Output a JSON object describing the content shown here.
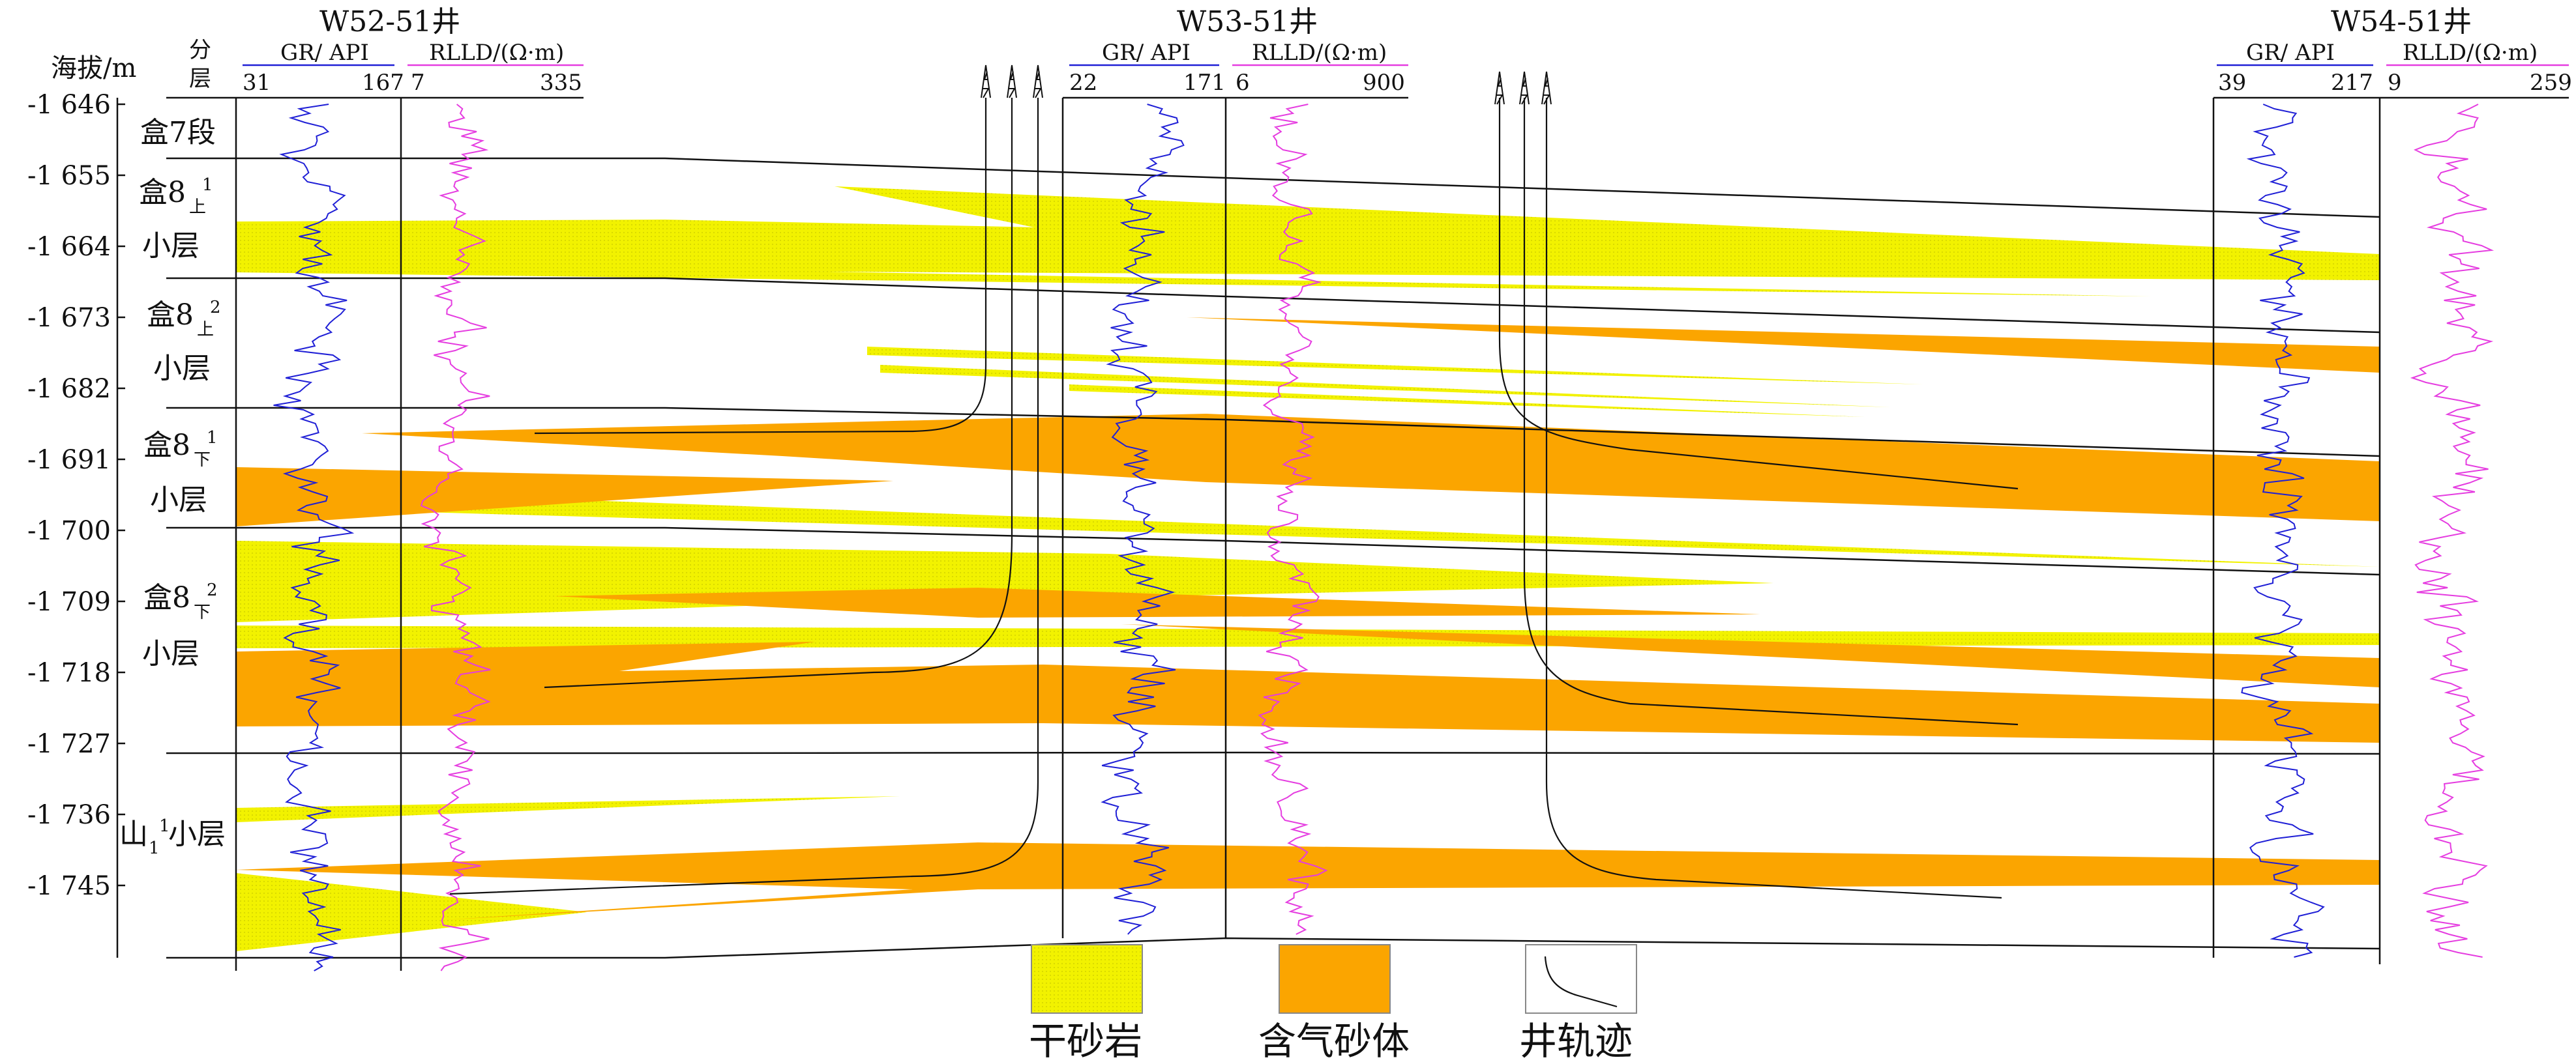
{
  "axis": {
    "title": "海拔/m",
    "ticks": [
      "-1 646",
      "-1 655",
      "-1 664",
      "-1 673",
      "-1 682",
      "-1 691",
      "-1 700",
      "-1 709",
      "-1 718",
      "-1 727",
      "-1 736",
      "-1 745"
    ]
  },
  "layer_header": [
    "分",
    "层"
  ],
  "layers": [
    {
      "main": "盒7段",
      "sub": "",
      "sup": "",
      "line2": ""
    },
    {
      "main": "盒8",
      "sub": "上",
      "sup": "1",
      "line2": "小层"
    },
    {
      "main": "盒8",
      "sub": "上",
      "sup": "2",
      "line2": "小层"
    },
    {
      "main": "盒8",
      "sub": "下",
      "sup": "1",
      "line2": "小层"
    },
    {
      "main": "盒8",
      "sub": "下",
      "sup": "2",
      "line2": "小层"
    },
    {
      "main": "山",
      "sub": "1",
      "sup": "1",
      "line2": "小层"
    }
  ],
  "wells": [
    {
      "name": "W52-51井",
      "gr_title": "GR/ API",
      "gr_min": "31",
      "gr_max": "167",
      "rt_title": "RLLD/(Ω·m)",
      "rt_min": "7",
      "rt_max": "335"
    },
    {
      "name": "W53-51井",
      "gr_title": "GR/ API",
      "gr_min": "22",
      "gr_max": "171",
      "rt_title": "RLLD/(Ω·m)",
      "rt_min": "6",
      "rt_max": "900"
    },
    {
      "name": "W54-51井",
      "gr_title": "GR/ API",
      "gr_min": "39",
      "gr_max": "217",
      "rt_title": "RLLD/(Ω·m)",
      "rt_min": "9",
      "rt_max": "259"
    }
  ],
  "legend": {
    "dry_sand": "干砂岩",
    "gas_sand": "含气砂体",
    "trajectory": "井轨迹"
  },
  "colors": {
    "dry_sand": "#f2f200",
    "gas_sand": "#fba500",
    "gr_curve": "#1f1fd6",
    "rt_curve": "#e53ce0",
    "line": "#111111"
  }
}
